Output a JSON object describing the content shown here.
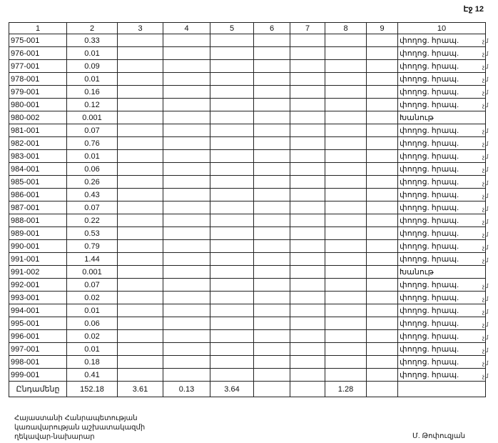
{
  "page_label": "Էջ 12",
  "headers": [
    "1",
    "2",
    "3",
    "4",
    "5",
    "6",
    "7",
    "8",
    "9",
    "10"
  ],
  "rows": [
    [
      "975-001",
      "0.33",
      "փողոց. հրապ."
    ],
    [
      "976-001",
      "0.01",
      "փողոց. հրապ."
    ],
    [
      "977-001",
      "0.09",
      "փողոց. հրապ."
    ],
    [
      "978-001",
      "0.01",
      "փողոց. հրապ."
    ],
    [
      "979-001",
      "0.16",
      "փողոց. հրապ."
    ],
    [
      "980-001",
      "0.12",
      "փողոց. հրապ."
    ],
    [
      "980-002",
      "0.001",
      "Խանութ"
    ],
    [
      "981-001",
      "0.07",
      "փողոց. հրապ."
    ],
    [
      "982-001",
      "0.76",
      "փողոց. հրապ."
    ],
    [
      "983-001",
      "0.01",
      "փողոց. հրապ."
    ],
    [
      "984-001",
      "0.06",
      "փողոց. հրապ."
    ],
    [
      "985-001",
      "0.26",
      "փողոց. հրապ."
    ],
    [
      "986-001",
      "0.43",
      "փողոց. հրապ."
    ],
    [
      "987-001",
      "0.07",
      "փողոց. հրապ."
    ],
    [
      "988-001",
      "0.22",
      "փողոց. հրապ."
    ],
    [
      "989-001",
      "0.53",
      "փողոց. հրապ."
    ],
    [
      "990-001",
      "0.79",
      "փողոց. հրապ."
    ],
    [
      "991-001",
      "1.44",
      "փողոց. հրապ."
    ],
    [
      "991-002",
      "0.001",
      "Խանութ"
    ],
    [
      "992-001",
      "0.07",
      "փողոց. հրապ."
    ],
    [
      "993-001",
      "0.02",
      "փողոց. հրապ."
    ],
    [
      "994-001",
      "0.01",
      "փողոց. հրապ."
    ],
    [
      "995-001",
      "0.06",
      "փողոց. հրապ."
    ],
    [
      "996-001",
      "0.02",
      "փողոց. հրապ."
    ],
    [
      "997-001",
      "0.01",
      "փողոց. հրապ."
    ],
    [
      "998-001",
      "0.18",
      "փողոց. հրապ."
    ],
    [
      "999-001",
      "0.41",
      "փողոց. հրապ."
    ]
  ],
  "margin_marks": [
    "չմ",
    "չմ",
    "չմ",
    "չմ",
    "չմ",
    "չմ",
    "",
    "չմ",
    "չմ",
    "չմ",
    "չմ",
    "չմ",
    "չմ",
    "չմ",
    "չմ",
    "չմ",
    "չմ",
    "չմ",
    "",
    "չմ",
    "չմ",
    "չմ",
    "չմ",
    "չմ",
    "չմ",
    "չմ",
    "չմ"
  ],
  "total": [
    "Ընդամենը",
    "152.18",
    "3.61",
    "0.13",
    "3.64",
    "",
    "",
    "1.28",
    "",
    ""
  ],
  "footer": {
    "line1": "Հայաստանի Հանրապետության",
    "line2": "կառավարության աշխատակազմի",
    "line3": "ղեկավար-նախարար",
    "signature": "Մ. Թոփուզյան"
  }
}
